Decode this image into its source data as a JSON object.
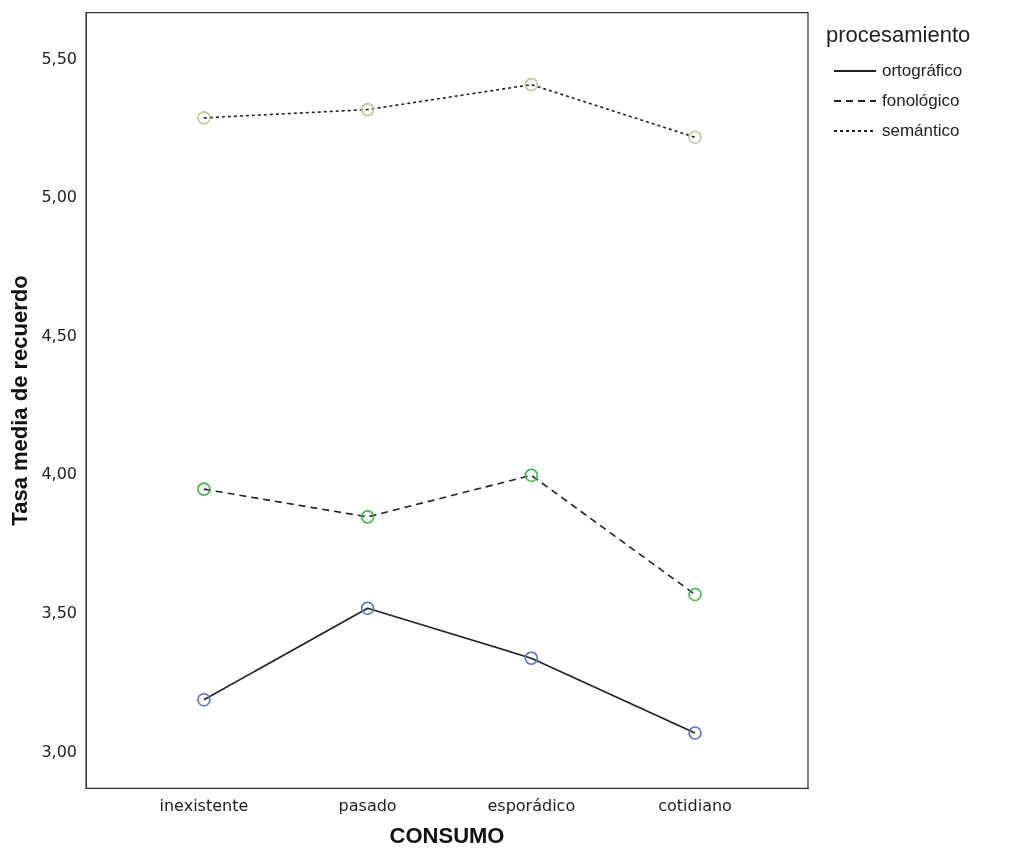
{
  "chart_data": {
    "type": "line",
    "xlabel": "CONSUMO",
    "ylabel": "Tasa media de recuerdo",
    "legend_title": "procesamiento",
    "legend": "right",
    "grid": false,
    "marker": "circle",
    "categories": [
      "inexistente",
      "pasado",
      "esporádico",
      "cotidiano"
    ],
    "ylim": [
      2.87,
      5.67
    ],
    "yticks": [
      {
        "value": 3,
        "label": "3,00"
      },
      {
        "value": 3.5,
        "label": "3,50"
      },
      {
        "value": 4,
        "label": "4,00"
      },
      {
        "value": 4.5,
        "label": "4,50"
      },
      {
        "value": 5,
        "label": "5,00"
      },
      {
        "value": 5.5,
        "label": "5,50"
      }
    ],
    "series": [
      {
        "name": "ortográfico",
        "color": "#5b6fd0",
        "line_style": "solid",
        "values": [
          3.19,
          3.52,
          3.34,
          3.07
        ]
      },
      {
        "name": "fonológico",
        "color": "#3cb84a",
        "line_style": "dashed",
        "values": [
          3.95,
          3.85,
          4.0,
          3.57
        ]
      },
      {
        "name": "semántico",
        "color": "#c8c39a",
        "line_style": "dotted",
        "values": [
          5.29,
          5.32,
          5.41,
          5.22
        ]
      }
    ]
  }
}
